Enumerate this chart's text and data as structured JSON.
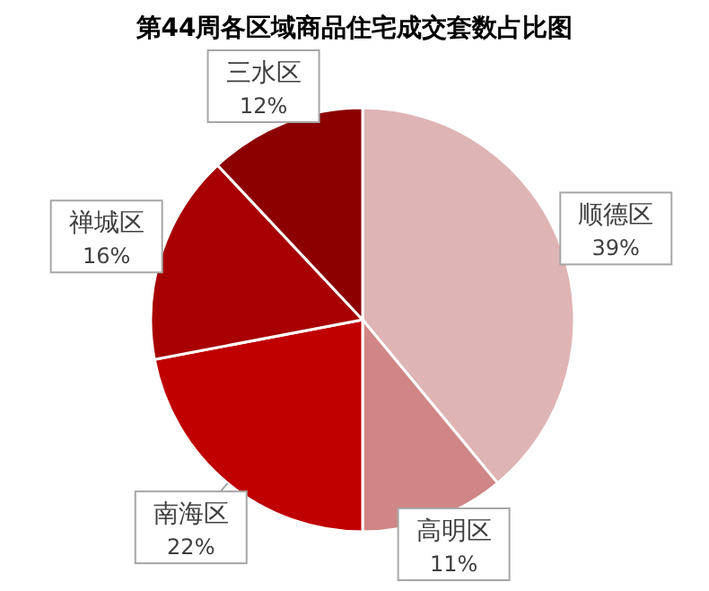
{
  "chart_data": {
    "type": "pie",
    "title": "第44周各区域商品住宅成交套数占比图",
    "categories": [
      "顺德区",
      "高明区",
      "南海区",
      "禅城区",
      "三水区"
    ],
    "values": [
      39,
      11,
      22,
      16,
      12
    ],
    "value_labels": [
      "39%",
      "11%",
      "22%",
      "16%",
      "12%"
    ],
    "colors": [
      "#dfb4b4",
      "#d08686",
      "#c00000",
      "#a80000",
      "#8c0000"
    ]
  }
}
